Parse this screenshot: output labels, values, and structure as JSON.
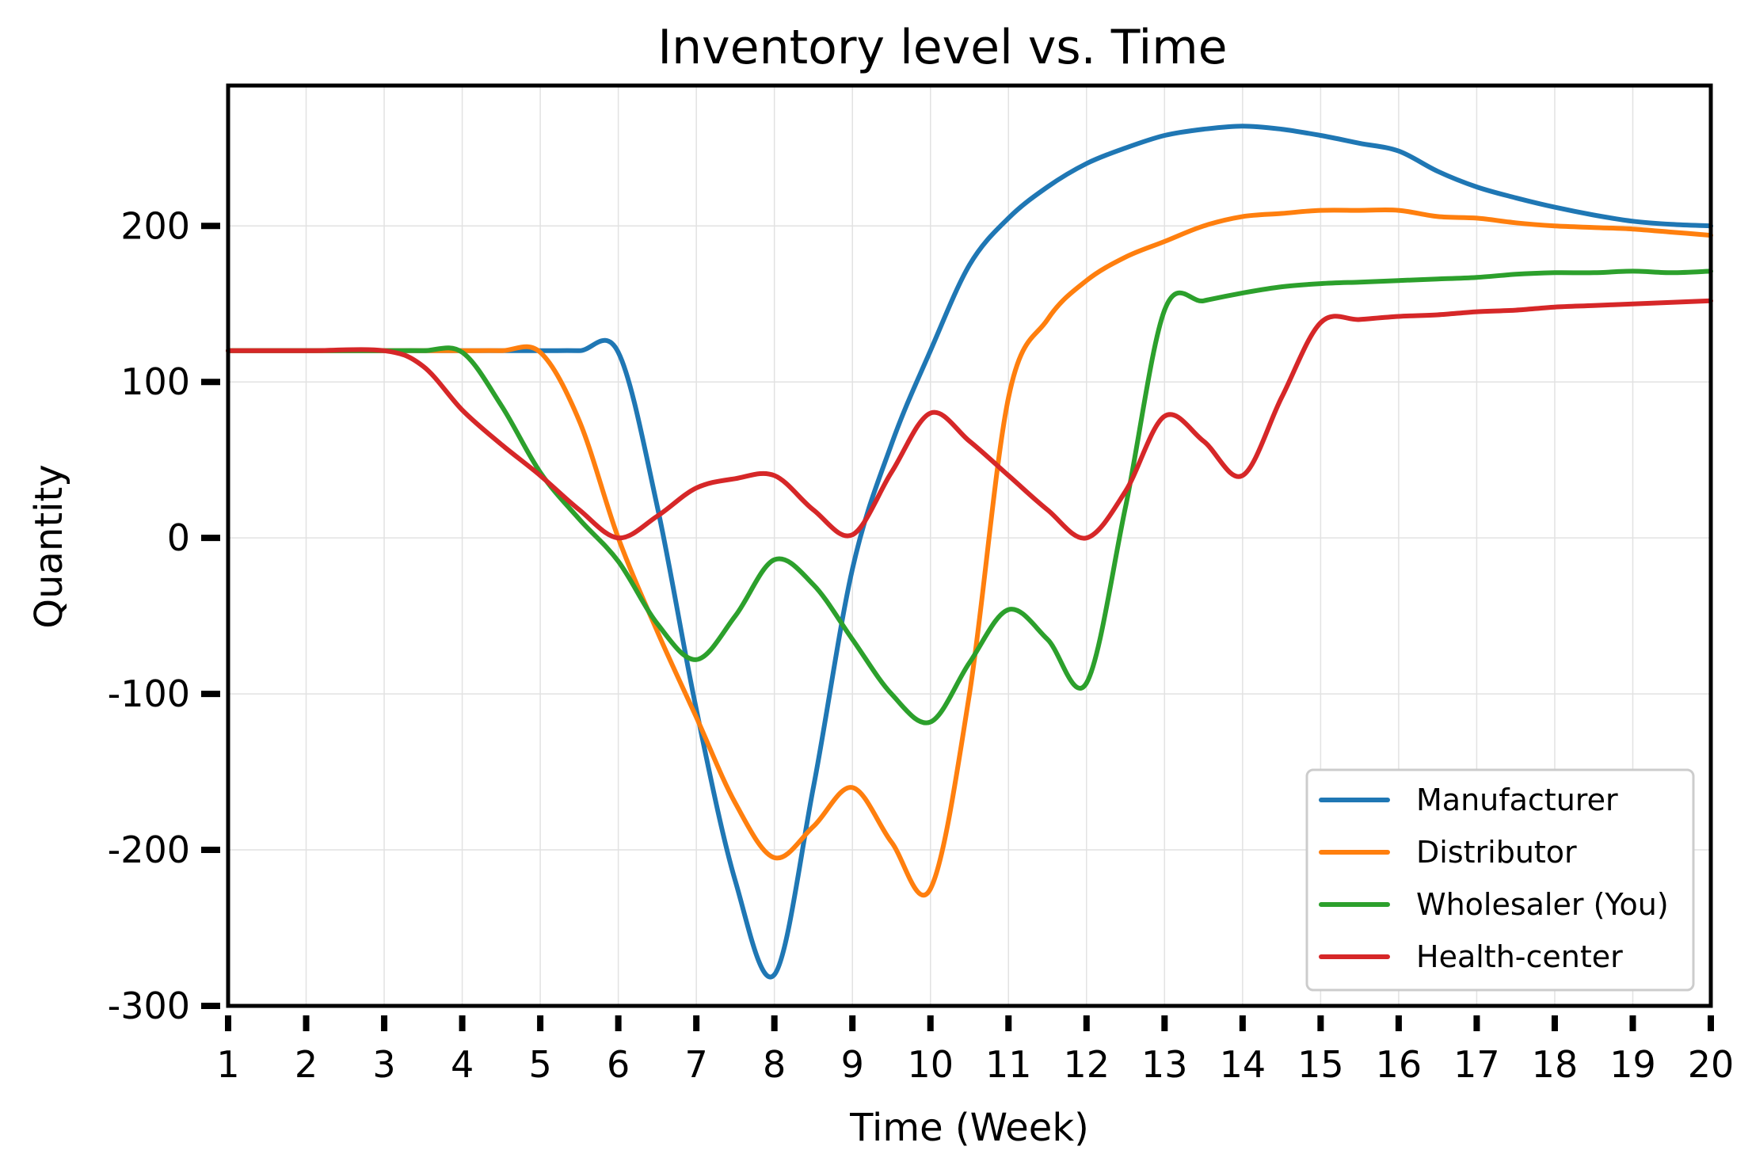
{
  "chart_data": {
    "type": "line",
    "title": "Inventory level vs. Time",
    "xlabel": "Time (Week)",
    "ylabel": "Quantity",
    "xlim": [
      1,
      20
    ],
    "ylim": [
      -300,
      290
    ],
    "xticks": [
      "1",
      "2",
      "3",
      "4",
      "5",
      "6",
      "7",
      "8",
      "9",
      "10",
      "11",
      "12",
      "13",
      "14",
      "15",
      "16",
      "17",
      "18",
      "19",
      "20"
    ],
    "yticks": [
      "200",
      "100",
      "0",
      "-100",
      "-200",
      "-300"
    ],
    "ytick_values": [
      200,
      100,
      0,
      -100,
      -200,
      -300
    ],
    "grid": true,
    "legend_position": "lower-right",
    "series": [
      {
        "name": "Manufacturer",
        "color": "#1f77b4",
        "x": [
          1,
          2,
          3,
          4,
          5,
          5.5,
          6,
          6.5,
          7,
          7.5,
          8,
          8.5,
          9,
          9.5,
          10,
          10.5,
          11,
          11.5,
          12,
          12.5,
          13,
          13.5,
          14,
          14.5,
          15,
          15.5,
          16,
          16.5,
          17,
          17.5,
          18,
          18.5,
          19,
          19.5,
          20
        ],
        "y": [
          120,
          120,
          120,
          120,
          120,
          120,
          119,
          20,
          -110,
          -220,
          -280,
          -160,
          -20,
          60,
          120,
          175,
          205,
          225,
          240,
          250,
          258,
          262,
          264,
          262,
          258,
          253,
          248,
          235,
          225,
          218,
          212,
          207,
          203,
          201,
          200
        ]
      },
      {
        "name": "Distributor",
        "color": "#ff7f0e",
        "x": [
          1,
          2,
          3,
          4,
          4.5,
          5,
          5.5,
          6,
          6.5,
          7,
          7.5,
          8,
          8.5,
          9,
          9.5,
          10,
          10.5,
          11,
          11.5,
          12,
          12.5,
          13,
          13.5,
          14,
          14.5,
          15,
          15.5,
          16,
          16.5,
          17,
          17.5,
          18,
          18.5,
          19,
          19.5,
          20
        ],
        "y": [
          120,
          120,
          120,
          120,
          120,
          119,
          75,
          0,
          -60,
          -115,
          -170,
          -205,
          -185,
          -160,
          -195,
          -225,
          -100,
          90,
          140,
          165,
          180,
          190,
          200,
          206,
          208,
          210,
          210,
          210,
          206,
          205,
          202,
          200,
          199,
          198,
          196,
          194
        ]
      },
      {
        "name": "Wholesaler (You)",
        "color": "#2ca02c",
        "x": [
          1,
          2,
          3,
          3.5,
          4,
          4.5,
          5,
          5.5,
          6,
          6.5,
          7,
          7.5,
          8,
          8.5,
          9,
          9.5,
          10,
          10.5,
          11,
          11.5,
          12,
          12.5,
          13,
          13.5,
          14,
          14.5,
          15,
          15.5,
          16,
          16.5,
          17,
          17.5,
          18,
          18.5,
          19,
          19.5,
          20
        ],
        "y": [
          120,
          120,
          120,
          120,
          119,
          85,
          42,
          12,
          -15,
          -55,
          -78,
          -50,
          -14,
          -30,
          -65,
          -100,
          -118,
          -80,
          -46,
          -65,
          -93,
          20,
          146,
          152,
          157,
          161,
          163,
          164,
          165,
          166,
          167,
          169,
          170,
          170,
          171,
          170,
          171
        ]
      },
      {
        "name": "Health-center",
        "color": "#d62728",
        "x": [
          1,
          2,
          3,
          3.5,
          4,
          4.5,
          5,
          5.5,
          6,
          6.5,
          7,
          7.5,
          8,
          8.5,
          9,
          9.5,
          10,
          10.5,
          11,
          11.5,
          12,
          12.5,
          13,
          13.5,
          14,
          14.5,
          15,
          15.5,
          16,
          16.5,
          17,
          17.5,
          18,
          18.5,
          19,
          19.5,
          20
        ],
        "y": [
          120,
          120,
          120,
          110,
          82,
          60,
          40,
          18,
          0,
          14,
          32,
          38,
          40,
          18,
          2,
          42,
          80,
          62,
          40,
          18,
          0,
          30,
          78,
          62,
          40,
          90,
          138,
          140,
          142,
          143,
          145,
          146,
          148,
          149,
          150,
          151,
          152
        ]
      }
    ]
  }
}
